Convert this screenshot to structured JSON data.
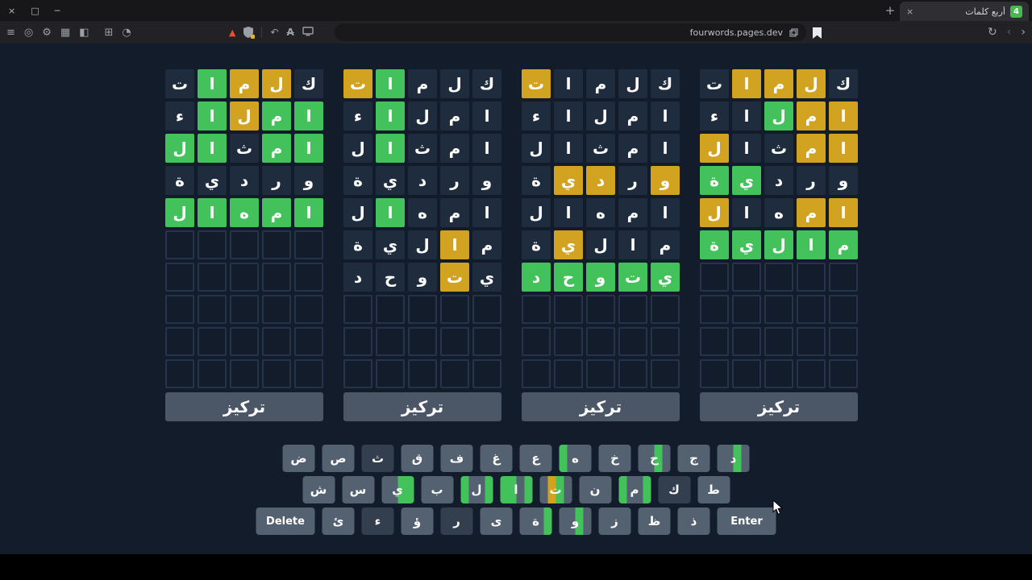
{
  "colors": {
    "green": "#43c15b",
    "yellow": "#d2a321",
    "favicon": "#43b94e"
  },
  "browser": {
    "tab_title": "أربع كلمات",
    "favicon_label": "4",
    "new_tab_label": "+",
    "url": "fourwords.pages.dev",
    "icons": {
      "close": "×",
      "restore": "□",
      "minimize": "─",
      "menu": "≡",
      "target": "◎",
      "gear": "⚙",
      "grid": "▦",
      "panel": "◧",
      "window": "⊞",
      "clock": "◔",
      "adblock_triangle": "▲",
      "undo": "↶",
      "font_disabled": "A",
      "tab_close": "×",
      "reload": "↻",
      "back": "‹",
      "forward": "›"
    }
  },
  "game": {
    "focus_button_label": "تركيز",
    "boards": [
      {
        "rows": [
          [
            [
              "ت",
              "a"
            ],
            [
              "ا",
              "g"
            ],
            [
              "م",
              "y"
            ],
            [
              "ل",
              "y"
            ],
            [
              "ك",
              "a"
            ]
          ],
          [
            [
              "ء",
              "a"
            ],
            [
              "ا",
              "g"
            ],
            [
              "ل",
              "y"
            ],
            [
              "م",
              "g"
            ],
            [
              "ا",
              "g"
            ]
          ],
          [
            [
              "ل",
              "g"
            ],
            [
              "ا",
              "g"
            ],
            [
              "ث",
              "a"
            ],
            [
              "م",
              "g"
            ],
            [
              "ا",
              "g"
            ]
          ],
          [
            [
              "ة",
              "a"
            ],
            [
              "ي",
              "a"
            ],
            [
              "د",
              "a"
            ],
            [
              "ر",
              "a"
            ],
            [
              "و",
              "a"
            ]
          ],
          [
            [
              "ل",
              "g"
            ],
            [
              "ا",
              "g"
            ],
            [
              "ه",
              "g"
            ],
            [
              "م",
              "g"
            ],
            [
              "ا",
              "g"
            ]
          ],
          [],
          [],
          [],
          [],
          []
        ]
      },
      {
        "rows": [
          [
            [
              "ت",
              "y"
            ],
            [
              "ا",
              "g"
            ],
            [
              "م",
              "a"
            ],
            [
              "ل",
              "a"
            ],
            [
              "ك",
              "a"
            ]
          ],
          [
            [
              "ء",
              "a"
            ],
            [
              "ا",
              "g"
            ],
            [
              "ل",
              "a"
            ],
            [
              "م",
              "a"
            ],
            [
              "ا",
              "a"
            ]
          ],
          [
            [
              "ل",
              "a"
            ],
            [
              "ا",
              "g"
            ],
            [
              "ث",
              "a"
            ],
            [
              "م",
              "a"
            ],
            [
              "ا",
              "a"
            ]
          ],
          [
            [
              "ة",
              "a"
            ],
            [
              "ي",
              "a"
            ],
            [
              "د",
              "a"
            ],
            [
              "ر",
              "a"
            ],
            [
              "و",
              "a"
            ]
          ],
          [
            [
              "ل",
              "a"
            ],
            [
              "ا",
              "g"
            ],
            [
              "ه",
              "a"
            ],
            [
              "م",
              "a"
            ],
            [
              "ا",
              "a"
            ]
          ],
          [
            [
              "ة",
              "a"
            ],
            [
              "ي",
              "a"
            ],
            [
              "ل",
              "a"
            ],
            [
              "ا",
              "y"
            ],
            [
              "م",
              "a"
            ]
          ],
          [
            [
              "د",
              "a"
            ],
            [
              "ح",
              "a"
            ],
            [
              "و",
              "a"
            ],
            [
              "ت",
              "y"
            ],
            [
              "ي",
              "a"
            ]
          ],
          [],
          [],
          []
        ]
      },
      {
        "rows": [
          [
            [
              "ت",
              "y"
            ],
            [
              "ا",
              "a"
            ],
            [
              "م",
              "a"
            ],
            [
              "ل",
              "a"
            ],
            [
              "ك",
              "a"
            ]
          ],
          [
            [
              "ء",
              "a"
            ],
            [
              "ا",
              "a"
            ],
            [
              "ل",
              "a"
            ],
            [
              "م",
              "a"
            ],
            [
              "ا",
              "a"
            ]
          ],
          [
            [
              "ل",
              "a"
            ],
            [
              "ا",
              "a"
            ],
            [
              "ث",
              "a"
            ],
            [
              "م",
              "a"
            ],
            [
              "ا",
              "a"
            ]
          ],
          [
            [
              "ة",
              "a"
            ],
            [
              "ي",
              "y"
            ],
            [
              "د",
              "y"
            ],
            [
              "ر",
              "a"
            ],
            [
              "و",
              "y"
            ]
          ],
          [
            [
              "ل",
              "a"
            ],
            [
              "ا",
              "a"
            ],
            [
              "ه",
              "a"
            ],
            [
              "م",
              "a"
            ],
            [
              "ا",
              "a"
            ]
          ],
          [
            [
              "ة",
              "a"
            ],
            [
              "ي",
              "y"
            ],
            [
              "ل",
              "a"
            ],
            [
              "ا",
              "a"
            ],
            [
              "م",
              "a"
            ]
          ],
          [
            [
              "د",
              "g"
            ],
            [
              "ح",
              "g"
            ],
            [
              "و",
              "g"
            ],
            [
              "ت",
              "g"
            ],
            [
              "ي",
              "g"
            ]
          ],
          [],
          [],
          []
        ]
      },
      {
        "rows": [
          [
            [
              "ت",
              "a"
            ],
            [
              "ا",
              "y"
            ],
            [
              "م",
              "y"
            ],
            [
              "ل",
              "y"
            ],
            [
              "ك",
              "a"
            ]
          ],
          [
            [
              "ء",
              "a"
            ],
            [
              "ا",
              "a"
            ],
            [
              "ل",
              "g"
            ],
            [
              "م",
              "y"
            ],
            [
              "ا",
              "y"
            ]
          ],
          [
            [
              "ل",
              "y"
            ],
            [
              "ا",
              "a"
            ],
            [
              "ث",
              "a"
            ],
            [
              "م",
              "y"
            ],
            [
              "ا",
              "y"
            ]
          ],
          [
            [
              "ة",
              "g"
            ],
            [
              "ي",
              "g"
            ],
            [
              "د",
              "a"
            ],
            [
              "ر",
              "a"
            ],
            [
              "و",
              "a"
            ]
          ],
          [
            [
              "ل",
              "y"
            ],
            [
              "ا",
              "a"
            ],
            [
              "ه",
              "a"
            ],
            [
              "م",
              "y"
            ],
            [
              "ا",
              "y"
            ]
          ],
          [
            [
              "ة",
              "g"
            ],
            [
              "ي",
              "g"
            ],
            [
              "ل",
              "g"
            ],
            [
              "ا",
              "g"
            ],
            [
              "م",
              "g"
            ]
          ],
          [],
          [],
          [],
          []
        ]
      }
    ],
    "keyboard": {
      "rows": [
        [
          {
            "k": "ض"
          },
          {
            "k": "ص"
          },
          {
            "k": "ث",
            "used": true
          },
          {
            "k": "ق"
          },
          {
            "k": "ف"
          },
          {
            "k": "غ"
          },
          {
            "k": "ع"
          },
          {
            "k": "ه",
            "segs": "g..."
          },
          {
            "k": "خ"
          },
          {
            "k": "ح",
            "segs": "..g."
          },
          {
            "k": "ج"
          },
          {
            "k": "د",
            "segs": "..g."
          }
        ],
        [
          {
            "k": "ش"
          },
          {
            "k": "س"
          },
          {
            "k": "ي",
            "segs": "..gg"
          },
          {
            "k": "ب"
          },
          {
            "k": "ل",
            "segs": "g..g"
          },
          {
            "k": "ا",
            "segs": "gg.g"
          },
          {
            "k": "ت",
            "segs": ".yg."
          },
          {
            "k": "ن"
          },
          {
            "k": "م",
            "segs": "g..g"
          },
          {
            "k": "ك",
            "used": true
          },
          {
            "k": "ط"
          }
        ],
        [
          {
            "k": "Delete",
            "wide": true
          },
          {
            "k": "ئ"
          },
          {
            "k": "ء",
            "used": true
          },
          {
            "k": "ؤ"
          },
          {
            "k": "ر",
            "used": true
          },
          {
            "k": "ى"
          },
          {
            "k": "ة",
            "segs": "...g"
          },
          {
            "k": "و",
            "segs": "..g."
          },
          {
            "k": "ز"
          },
          {
            "k": "ظ"
          },
          {
            "k": "ذ"
          },
          {
            "k": "Enter",
            "wide": true
          }
        ]
      ]
    }
  }
}
